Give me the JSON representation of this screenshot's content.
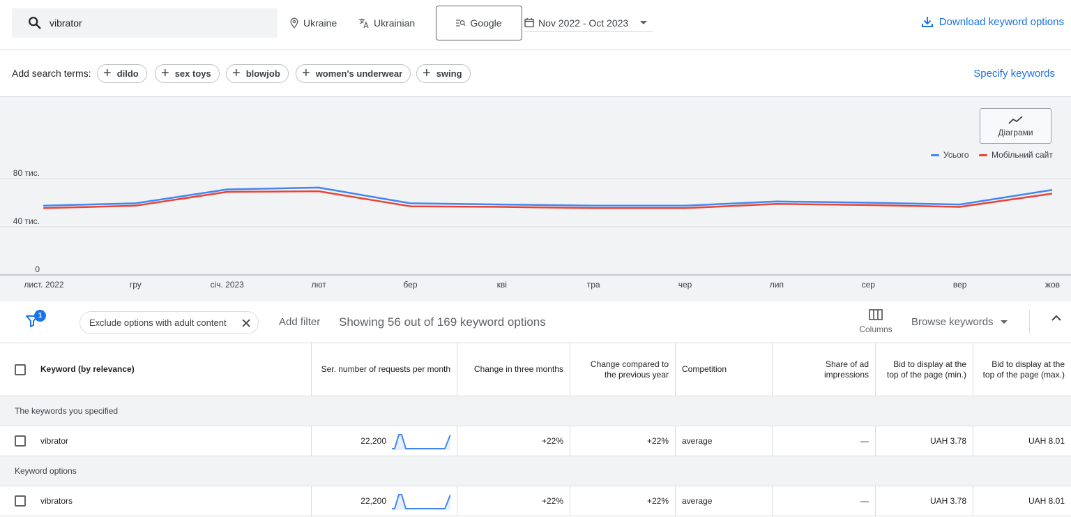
{
  "topbar": {
    "search_value": "vibrator",
    "location": "Ukraine",
    "language": "Ukrainian",
    "network": "Google",
    "date_range": "Nov 2022 - Oct 2023",
    "download_label": "Download keyword options"
  },
  "search_terms": {
    "label": "Add search terms:",
    "chips": [
      "dildo",
      "sex toys",
      "blowjob",
      "women's underwear",
      "swing"
    ],
    "specify_label": "Specify keywords"
  },
  "chart_panel": {
    "button_label": "Діаграми",
    "legend": [
      {
        "name": "Усього",
        "color": "#4285f4"
      },
      {
        "name": "Мобільний сайт",
        "color": "#ea4335"
      }
    ]
  },
  "chart_data": {
    "type": "line",
    "x": [
      "лист. 2022",
      "гру",
      "січ. 2023",
      "лют",
      "бер",
      "кві",
      "тра",
      "чер",
      "лип",
      "сер",
      "вер",
      "жов"
    ],
    "yticks": [
      "0",
      "40 тис.",
      "80 тис."
    ],
    "ylim": [
      0,
      80000
    ],
    "series": [
      {
        "name": "Усього",
        "color": "#4285f4",
        "values": [
          57500,
          59500,
          71000,
          72500,
          59500,
          58500,
          57500,
          57500,
          61000,
          60000,
          58500,
          70500
        ]
      },
      {
        "name": "Мобільний сайт",
        "color": "#ea4335",
        "values": [
          55500,
          57500,
          69000,
          69500,
          57000,
          56500,
          55500,
          55500,
          59000,
          58000,
          56500,
          67500
        ]
      }
    ],
    "grid": true,
    "legend_position": "top-right"
  },
  "filter_bar": {
    "badge": "1",
    "exclude_chip": "Exclude options with adult content",
    "add_filter": "Add filter",
    "showing": "Showing 56 out of 169 keyword options",
    "columns_label": "Columns",
    "browse_label": "Browse keywords"
  },
  "table": {
    "headers": {
      "keyword": "Keyword (by relevance)",
      "avg_searches": "Ser. number of requests per month",
      "three_month": "Change in three months",
      "yoy": "Change compared to the previous year",
      "competition": "Competition",
      "ad_share": "Share of ad impressions",
      "bid_min": "Bid to display at the top of the page (min.)",
      "bid_max": "Bid to display at the top of the page (max.)"
    },
    "group_specified": "The keywords you specified",
    "group_options": "Keyword options",
    "rows": [
      {
        "keyword": "vibrator",
        "avg_searches": "22,200",
        "three_month": "+22%",
        "yoy": "+22%",
        "competition": "average",
        "ad_share": "—",
        "bid_min": "UAH 3.78",
        "bid_max": "UAH 8.01"
      },
      {
        "keyword": "vibrators",
        "avg_searches": "22,200",
        "three_month": "+22%",
        "yoy": "+22%",
        "competition": "average",
        "ad_share": "—",
        "bid_min": "UAH 3.78",
        "bid_max": "UAH 8.01"
      }
    ]
  }
}
